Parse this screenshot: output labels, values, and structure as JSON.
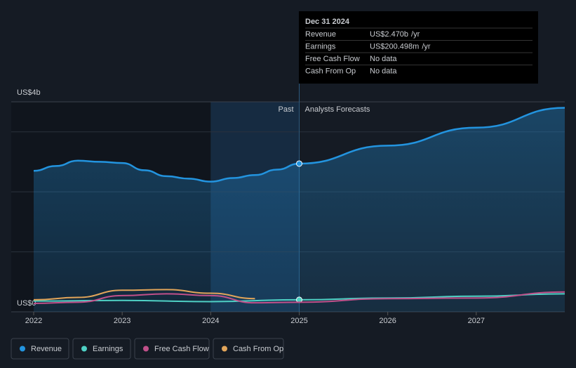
{
  "chart_data": {
    "type": "line",
    "xlim": [
      2022,
      2028
    ],
    "xticks": [
      2022,
      2023,
      2024,
      2025,
      2026,
      2027
    ],
    "ylim": [
      0,
      3.5
    ],
    "yticks": [
      {
        "value": 0,
        "label": "US$0"
      },
      {
        "value": 3.5,
        "label": "US$4b"
      }
    ],
    "grid_values": [
      1,
      2,
      3
    ],
    "past_label": "Past",
    "forecast_label": "Analysts Forecasts",
    "forecast_start": 2025,
    "highlight_start": 2024,
    "series": [
      {
        "name": "Revenue",
        "color": "#2394df",
        "area": true,
        "x": [
          2022,
          2022.25,
          2022.5,
          2022.75,
          2023,
          2023.25,
          2023.5,
          2023.75,
          2024,
          2024.25,
          2024.5,
          2024.75,
          2025,
          2026,
          2027,
          2028
        ],
        "values": [
          2.35,
          2.43,
          2.52,
          2.5,
          2.48,
          2.36,
          2.26,
          2.22,
          2.17,
          2.23,
          2.28,
          2.37,
          2.47,
          2.77,
          3.07,
          3.4
        ]
      },
      {
        "name": "Earnings",
        "color": "#4fd1c5",
        "area": false,
        "x": [
          2022,
          2023,
          2024,
          2025,
          2026,
          2027,
          2028
        ],
        "values": [
          0.18,
          0.19,
          0.17,
          0.2005,
          0.23,
          0.26,
          0.3
        ]
      },
      {
        "name": "Free Cash Flow",
        "color": "#c0508a",
        "area": false,
        "x": [
          2022,
          2022.5,
          2023,
          2023.5,
          2024,
          2024.5,
          2025,
          2026,
          2027,
          2028
        ],
        "values": [
          0.14,
          0.16,
          0.27,
          0.3,
          0.27,
          0.15,
          0.16,
          0.22,
          0.23,
          0.33
        ]
      },
      {
        "name": "Cash From Op",
        "color": "#e2a55a",
        "area": false,
        "x": [
          2022,
          2022.5,
          2023,
          2023.5,
          2024,
          2024.5
        ],
        "values": [
          0.2,
          0.24,
          0.36,
          0.37,
          0.31,
          0.22
        ]
      }
    ],
    "tooltip": {
      "title": "Dec 31 2024",
      "rows": [
        [
          "Revenue",
          "US$2.470b",
          "/yr"
        ],
        [
          "Earnings",
          "US$200.498m",
          "/yr"
        ],
        [
          "Free Cash Flow",
          "No data"
        ],
        [
          "Cash From Op",
          "No data"
        ]
      ]
    }
  }
}
